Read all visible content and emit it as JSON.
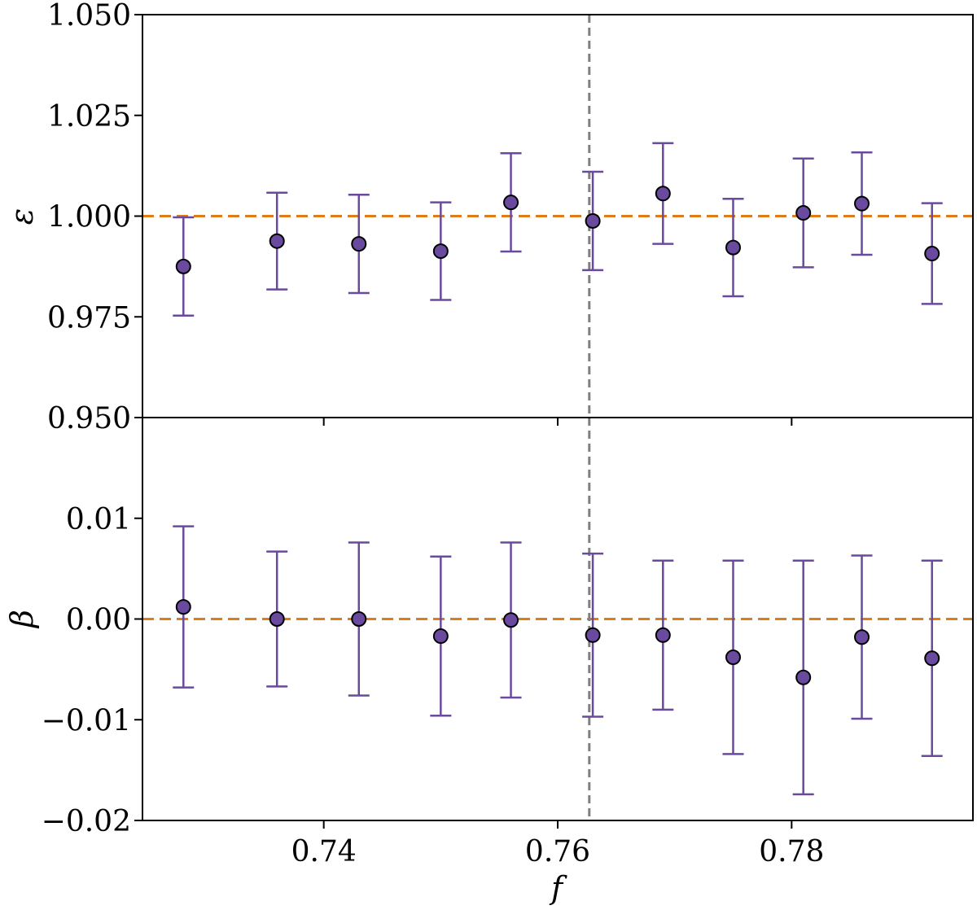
{
  "chart_data": [
    {
      "type": "scatter",
      "name": "epsilon",
      "ylabel": "ε",
      "xlabel": "",
      "xlim": [
        0.7245,
        0.7955
      ],
      "ylim": [
        0.95,
        1.05
      ],
      "yticks": [
        0.95,
        0.975,
        1.0,
        1.025,
        1.05
      ],
      "ytick_labels": [
        "0.950",
        "0.975",
        "1.000",
        "1.025",
        "1.050"
      ],
      "reference_line": 1.0,
      "vline": 0.7627,
      "marker_color": "#6a4a9e",
      "errorbar_color": "#6a4a9e",
      "reference_color": "#e07b1a",
      "vline_color": "#808080",
      "x": [
        0.728,
        0.736,
        0.743,
        0.75,
        0.756,
        0.763,
        0.769,
        0.775,
        0.781,
        0.786,
        0.792
      ],
      "y": [
        0.9875,
        0.9938,
        0.9931,
        0.9913,
        1.0034,
        0.9988,
        1.0056,
        0.9922,
        1.0008,
        1.0031,
        0.9907
      ],
      "yerr": [
        0.0122,
        0.012,
        0.0122,
        0.0121,
        0.0122,
        0.0122,
        0.0125,
        0.0121,
        0.0135,
        0.0127,
        0.0125
      ]
    },
    {
      "type": "scatter",
      "name": "beta",
      "ylabel": "β",
      "xlabel": "f",
      "xlim": [
        0.7245,
        0.7955
      ],
      "ylim": [
        -0.02,
        0.02
      ],
      "yticks": [
        -0.02,
        -0.01,
        0.0,
        0.01
      ],
      "ytick_labels": [
        "−0.02",
        "−0.01",
        "0.00",
        "0.01"
      ],
      "xticks": [
        0.74,
        0.76,
        0.78
      ],
      "xtick_labels": [
        "0.74",
        "0.76",
        "0.78"
      ],
      "reference_line": 0.0,
      "vline": 0.7627,
      "marker_color": "#6a4a9e",
      "errorbar_color": "#6a4a9e",
      "reference_color": "#e07b1a",
      "vline_color": "#808080",
      "x": [
        0.728,
        0.736,
        0.743,
        0.75,
        0.756,
        0.763,
        0.769,
        0.775,
        0.781,
        0.786,
        0.792
      ],
      "y": [
        0.0012,
        0.0,
        0.0,
        -0.0017,
        -0.0001,
        -0.0016,
        -0.0016,
        -0.0038,
        -0.0058,
        -0.0018,
        -0.0039
      ],
      "yerr": [
        0.008,
        0.0067,
        0.0076,
        0.0079,
        0.0077,
        0.0081,
        0.0074,
        0.0096,
        0.0116,
        0.0081,
        0.0097
      ]
    }
  ]
}
